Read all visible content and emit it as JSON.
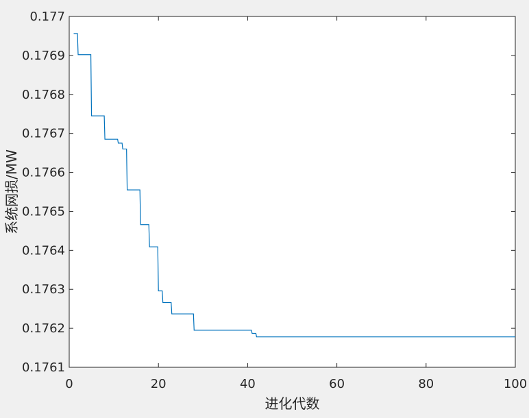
{
  "chart_data": {
    "type": "line",
    "title": "",
    "xlabel": "进化代数",
    "ylabel": "系统网损/MW",
    "xlim": [
      0,
      100
    ],
    "ylim": [
      0.1761,
      0.177
    ],
    "x_ticks": [
      "0",
      "20",
      "40",
      "60",
      "80",
      "100"
    ],
    "y_ticks": [
      "0.1761",
      "0.1762",
      "0.1763",
      "0.1764",
      "0.1765",
      "0.1766",
      "0.1767",
      "0.1768",
      "0.1769",
      "0.177"
    ],
    "grid": false,
    "line_color": "#0072BD",
    "series": [
      {
        "x": [
          1,
          2,
          3,
          4,
          5,
          6,
          7,
          8,
          9,
          10,
          11,
          12,
          13,
          14,
          15,
          16,
          17,
          18,
          19,
          20,
          21,
          22,
          23,
          24,
          25,
          26,
          27,
          28,
          30,
          35,
          40,
          41,
          42,
          50,
          60,
          70,
          80,
          90,
          100
        ],
        "y": [
          0.176956,
          0.176902,
          0.176902,
          0.176902,
          0.176745,
          0.176745,
          0.176745,
          0.176685,
          0.176685,
          0.176685,
          0.176675,
          0.17666,
          0.176555,
          0.176555,
          0.176555,
          0.176466,
          0.176466,
          0.176409,
          0.176409,
          0.176296,
          0.176266,
          0.176266,
          0.176237,
          0.176237,
          0.176237,
          0.176237,
          0.176237,
          0.176195,
          0.176195,
          0.176195,
          0.176195,
          0.176187,
          0.176178,
          0.176178,
          0.176178,
          0.176178,
          0.176178,
          0.176178,
          0.176178
        ]
      }
    ]
  }
}
